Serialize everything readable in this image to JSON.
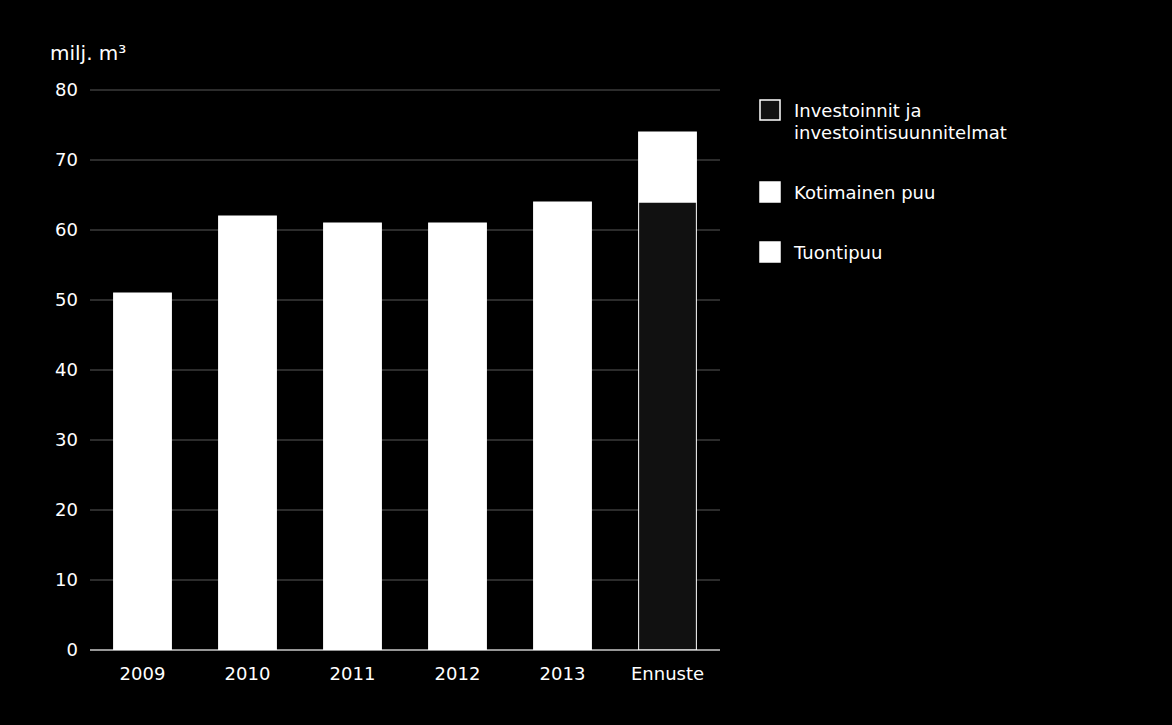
{
  "chart_data": {
    "type": "bar",
    "stacked": true,
    "y_label": "milj. m³",
    "categories": [
      "2009",
      "2010",
      "2011",
      "2012",
      "2013",
      "Ennuste"
    ],
    "series": [
      {
        "name": "Investoinnit ja\ninvestointisuunnitelmat",
        "color": "#111111",
        "values": [
          0,
          0,
          0,
          0,
          0,
          64
        ]
      },
      {
        "name": "Kotimainen puu",
        "color": "#ffffff",
        "values": [
          51,
          62,
          61,
          61,
          64,
          0
        ]
      },
      {
        "name": "Tuontipuu",
        "color": "#ffffff",
        "values": [
          0,
          0,
          0,
          0,
          0,
          10
        ]
      }
    ],
    "ylim": [
      0,
      80
    ],
    "yticks": [
      0,
      10,
      20,
      30,
      40,
      50,
      60,
      70,
      80
    ],
    "grid": true,
    "legend": "right"
  }
}
